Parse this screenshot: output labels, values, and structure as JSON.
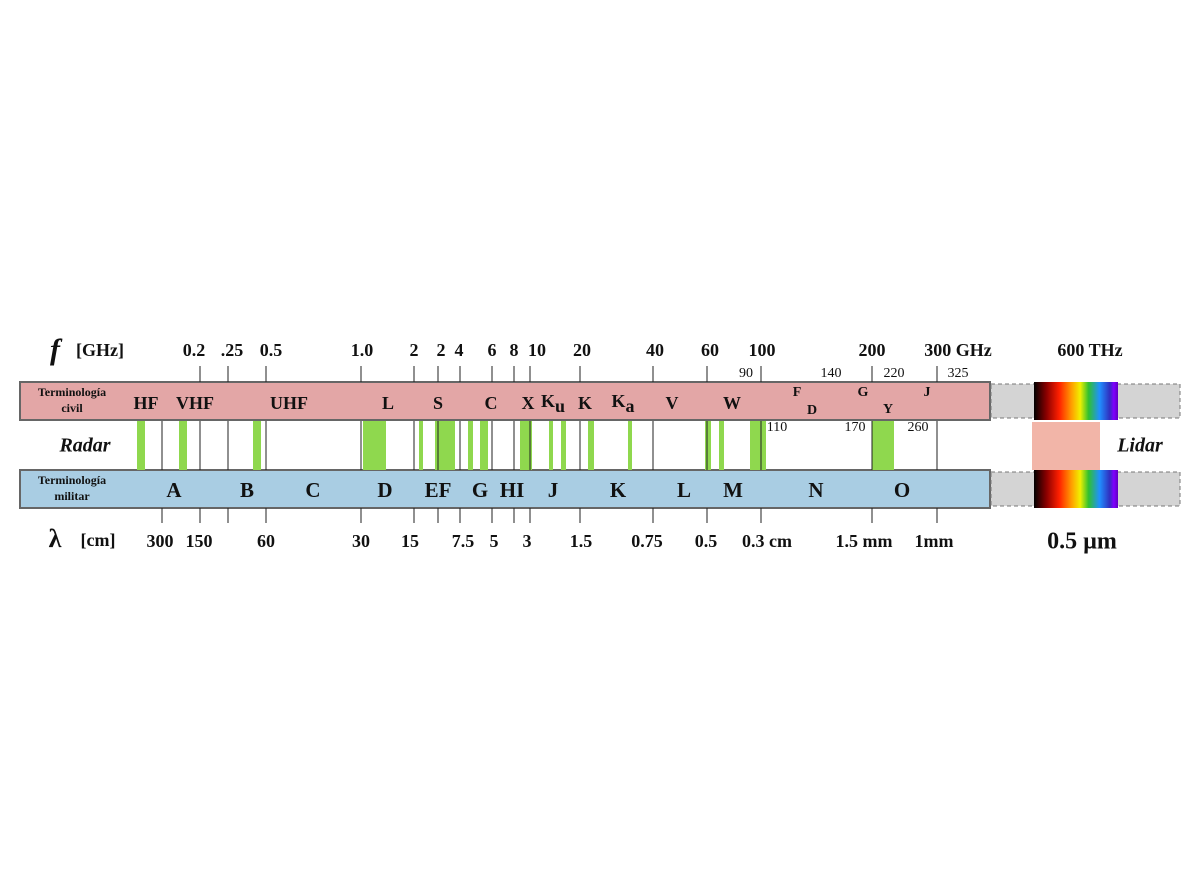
{
  "frequency_axis": {
    "symbol": "f",
    "unit": "[GHz]",
    "labels": [
      "0.2",
      ".25",
      "0.5",
      "1.0",
      "2",
      "2",
      "4",
      "6",
      "8",
      "10",
      "20",
      "40",
      "60",
      "100",
      "200",
      "300 GHz",
      "600 THz"
    ],
    "small_labels": [
      "90",
      "140",
      "220",
      "325",
      "110",
      "170",
      "260"
    ]
  },
  "civil": {
    "title": [
      "Terminología",
      "civil"
    ],
    "bands": [
      "HF",
      "VHF",
      "UHF",
      "L",
      "S",
      "C",
      "X",
      {
        "main": "K",
        "sub": "u"
      },
      "K",
      {
        "main": "K",
        "sub": "a"
      },
      "V",
      "W",
      "F",
      "D",
      "G",
      "Y",
      "J"
    ]
  },
  "radar": "Radar",
  "lidar": "Lidar",
  "military": {
    "title": [
      "Terminología",
      "militar"
    ],
    "bands": [
      "A",
      "B",
      "C",
      "D",
      "EF",
      "G",
      "HI",
      "J",
      "K",
      "L",
      "M",
      "N",
      "O"
    ]
  },
  "wavelength_axis": {
    "symbol": "λ",
    "unit": "[cm]",
    "labels": [
      "300",
      "150",
      "60",
      "30",
      "15",
      "7.5",
      "5",
      "3",
      "1.5",
      "0.75",
      "0.5",
      "0.3 cm",
      "1.5 mm",
      "1mm",
      "0.5 µm"
    ]
  }
}
